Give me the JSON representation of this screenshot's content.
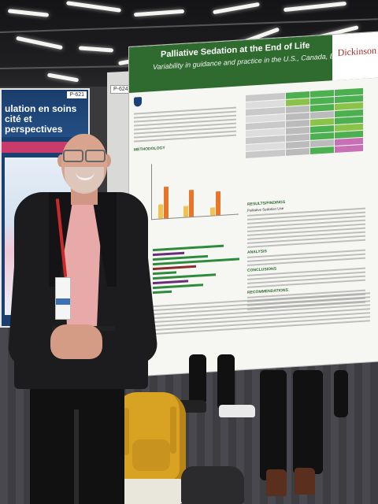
{
  "poster": {
    "title": "Palliative Sedation at the End of Life",
    "subtitle": "Variability in guidance and practice in the U.S., Canada, Europe, and Asia",
    "brand": "Dickinson",
    "number": "P-624",
    "results_heading": "RESULTS/FINDINGS",
    "palliative_sedation_use": "Palliative Sedation Use",
    "conclusions": "CONCLUSIONS",
    "recommendations": "RECOMMENDATIONS",
    "methodology": "METHODOLOGY",
    "analysis": "ANALYSIS"
  },
  "left_poster": {
    "title": "ulation en soins cité et perspectives",
    "number": "P-621"
  },
  "colors": {
    "poster_green": "#2f6b2f",
    "brand_red": "#a82a2a",
    "bar_yellow": "#f2c14e",
    "bar_orange": "#e8762a"
  }
}
